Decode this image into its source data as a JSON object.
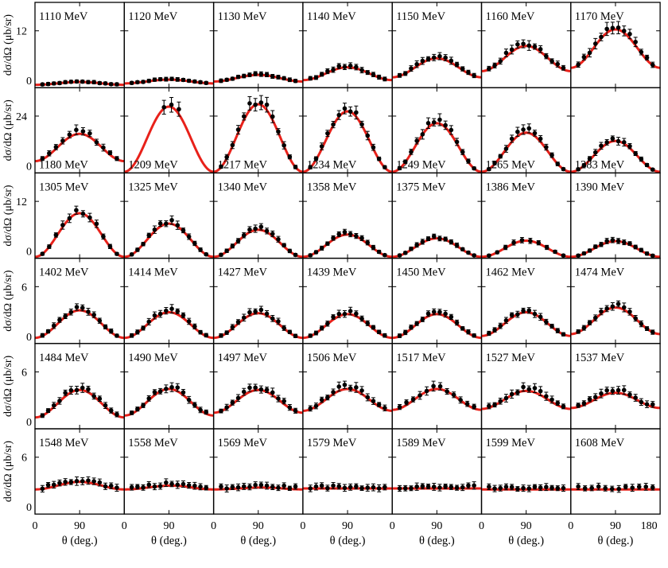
{
  "figure": {
    "ylabel": "dσ/dΩ (μb/sr)",
    "xlabel": "θ (deg.)",
    "x_tick_labels": [
      "0",
      "90",
      "180"
    ],
    "energy_unit": "MeV",
    "colors": {
      "model_curve": "#e8211a",
      "data_points": "#000000",
      "axes": "#000000"
    }
  },
  "chart_data": {
    "type": "scatter",
    "layout": "grid of 6 rows x 7 columns of small-multiple panels",
    "xlim": [
      0,
      180
    ],
    "x_ticks": [
      0,
      90,
      180
    ],
    "series": [
      {
        "name": "data",
        "style": "black points with error bars"
      },
      {
        "name": "model",
        "style": "red solid curve"
      }
    ],
    "rows": [
      {
        "ylim": [
          0,
          18
        ],
        "y_tick": 12,
        "label_position": "top",
        "panels": [
          {
            "energy": "1110 MeV",
            "peak": 1.2,
            "min": 0.6,
            "xpeak": 90,
            "data_points": 14
          },
          {
            "energy": "1120 MeV",
            "peak": 1.7,
            "min": 0.9,
            "xpeak": 90,
            "data_points": 14
          },
          {
            "energy": "1130 MeV",
            "peak": 2.7,
            "min": 1.3,
            "xpeak": 90,
            "data_points": 14
          },
          {
            "energy": "1140 MeV",
            "peak": 4.3,
            "min": 1.6,
            "xpeak": 90,
            "data_points": 14
          },
          {
            "energy": "1150 MeV",
            "peak": 6.2,
            "min": 2.2,
            "xpeak": 90,
            "data_points": 14
          },
          {
            "energy": "1160 MeV",
            "peak": 8.8,
            "min": 3.5,
            "xpeak": 90,
            "data_points": 14
          },
          {
            "energy": "1170 MeV",
            "peak": 12.3,
            "min": 4.2,
            "xpeak": 90,
            "data_points": 14
          }
        ]
      },
      {
        "ylim": [
          0,
          36
        ],
        "y_tick": 24,
        "label_position": "bottom",
        "panels": [
          {
            "energy": "1180 MeV",
            "peak": 16.5,
            "min": 5.0,
            "xpeak": 90,
            "data_points": 12
          },
          {
            "energy": "1209 MeV",
            "peak": 28.0,
            "min": 0.5,
            "xpeak": 90,
            "data_points": 3
          },
          {
            "energy": "1217 MeV",
            "peak": 29.0,
            "min": 0.5,
            "xpeak": 90,
            "data_points": 14
          },
          {
            "energy": "1234 MeV",
            "peak": 26.0,
            "min": 0.5,
            "xpeak": 90,
            "data_points": 14
          },
          {
            "energy": "1249 MeV",
            "peak": 21.0,
            "min": 0.5,
            "xpeak": 90,
            "data_points": 14
          },
          {
            "energy": "1265 MeV",
            "peak": 17.0,
            "min": 0.5,
            "xpeak": 90,
            "data_points": 14
          },
          {
            "energy": "1283 MeV",
            "peak": 13.5,
            "min": 0.5,
            "xpeak": 90,
            "data_points": 14
          }
        ]
      },
      {
        "ylim": [
          0,
          18
        ],
        "y_tick": 12,
        "label_position": "top",
        "panels": [
          {
            "energy": "1305 MeV",
            "peak": 9.5,
            "min": 0.3,
            "xpeak": 90,
            "data_points": 12
          },
          {
            "energy": "1325 MeV",
            "peak": 7.3,
            "min": 0.3,
            "xpeak": 90,
            "data_points": 14
          },
          {
            "energy": "1340 MeV",
            "peak": 6.0,
            "min": 0.3,
            "xpeak": 90,
            "data_points": 14
          },
          {
            "energy": "1358 MeV",
            "peak": 5.0,
            "min": 0.3,
            "xpeak": 90,
            "data_points": 14
          },
          {
            "energy": "1375 MeV",
            "peak": 4.2,
            "min": 0.3,
            "xpeak": 90,
            "data_points": 14
          },
          {
            "energy": "1386 MeV",
            "peak": 3.7,
            "min": 0.3,
            "xpeak": 90,
            "data_points": 10
          },
          {
            "energy": "1390 MeV",
            "peak": 3.6,
            "min": 0.3,
            "xpeak": 90,
            "data_points": 14
          }
        ]
      },
      {
        "ylim": [
          0,
          9
        ],
        "y_tick": 6,
        "label_position": "top",
        "panels": [
          {
            "energy": "1402 MeV",
            "peak": 3.5,
            "min": 0.6,
            "xpeak": 90,
            "data_points": 14
          },
          {
            "energy": "1414 MeV",
            "peak": 3.3,
            "min": 0.6,
            "xpeak": 90,
            "data_points": 14
          },
          {
            "energy": "1427 MeV",
            "peak": 3.2,
            "min": 0.6,
            "xpeak": 90,
            "data_points": 14
          },
          {
            "energy": "1439 MeV",
            "peak": 3.1,
            "min": 0.6,
            "xpeak": 90,
            "data_points": 14
          },
          {
            "energy": "1450 MeV",
            "peak": 3.1,
            "min": 0.6,
            "xpeak": 90,
            "data_points": 14
          },
          {
            "energy": "1462 MeV",
            "peak": 3.3,
            "min": 0.8,
            "xpeak": 90,
            "data_points": 14
          },
          {
            "energy": "1474 MeV",
            "peak": 3.8,
            "min": 1.0,
            "xpeak": 90,
            "data_points": 14
          }
        ]
      },
      {
        "ylim": [
          0,
          9
        ],
        "y_tick": 6,
        "label_position": "top",
        "panels": [
          {
            "energy": "1484 MeV",
            "peak": 4.1,
            "min": 1.2,
            "xpeak": 90,
            "data_points": 14
          },
          {
            "energy": "1490 MeV",
            "peak": 4.2,
            "min": 1.4,
            "xpeak": 90,
            "data_points": 14
          },
          {
            "energy": "1497 MeV",
            "peak": 4.1,
            "min": 1.7,
            "xpeak": 90,
            "data_points": 14
          },
          {
            "energy": "1506 MeV",
            "peak": 4.2,
            "min": 1.9,
            "xpeak": 90,
            "data_points": 14
          },
          {
            "energy": "1517 MeV",
            "peak": 4.2,
            "min": 2.0,
            "xpeak": 90,
            "data_points": 12
          },
          {
            "energy": "1527 MeV",
            "peak": 4.0,
            "min": 2.1,
            "xpeak": 90,
            "data_points": 14
          },
          {
            "energy": "1537 MeV",
            "peak": 3.8,
            "min": 2.2,
            "xpeak": 90,
            "data_points": 14
          }
        ]
      },
      {
        "ylim": [
          0,
          9
        ],
        "y_tick": 6,
        "label_position": "top",
        "panels": [
          {
            "energy": "1548 MeV",
            "peak": 3.4,
            "min": 2.6,
            "xpeak": 90,
            "data_points": 14
          },
          {
            "energy": "1558 MeV",
            "peak": 3.0,
            "min": 2.6,
            "xpeak": 95,
            "data_points": 14
          },
          {
            "energy": "1569 MeV",
            "peak": 2.8,
            "min": 2.6,
            "xpeak": 100,
            "data_points": 14
          },
          {
            "energy": "1579 MeV",
            "peak": 2.7,
            "min": 2.7,
            "xpeak": 110,
            "data_points": 14
          },
          {
            "energy": "1589 MeV",
            "peak": 2.7,
            "min": 2.7,
            "xpeak": 120,
            "data_points": 14
          },
          {
            "energy": "1599 MeV",
            "peak": 2.6,
            "min": 2.6,
            "xpeak": 130,
            "data_points": 14
          },
          {
            "energy": "1608 MeV",
            "peak": 2.6,
            "min": 2.6,
            "xpeak": 130,
            "data_points": 12
          }
        ]
      }
    ]
  }
}
